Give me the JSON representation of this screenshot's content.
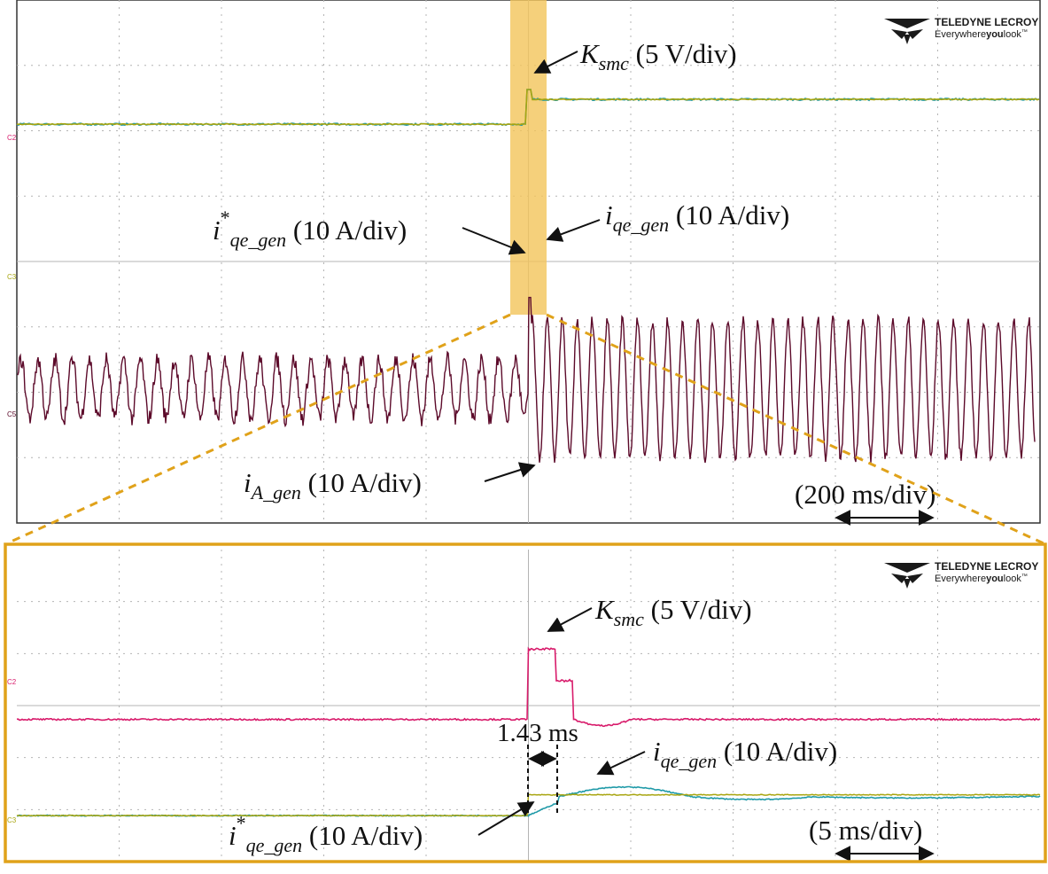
{
  "colors": {
    "ksmc": "#d81b6b",
    "iA_gen": "#5c0a2a",
    "iqe_ref": "#a8a510",
    "iqe_meas": "#1f9aa8",
    "highlight": "#f2c45a",
    "zoom": "#e0a21a",
    "grid": "#b4b4b4"
  },
  "brand": {
    "logo_icon": "teledyne-lecroy-logo-icon",
    "name": "TELEDYNE LECROY",
    "tagline_a": "Everywhere",
    "tagline_b": "you",
    "tagline_c": "look",
    "tagline_tm": "™"
  },
  "channel_tags": {
    "c2": "C2",
    "c3": "C3",
    "c5": "C5"
  },
  "top": {
    "ksmc_label": {
      "main": "K",
      "sub": "smc",
      "unit": " (5 V/div)"
    },
    "iqe_ref_label": {
      "main": "i",
      "sup": "*",
      "sub": "qe_gen",
      "unit": " (10 A/div)"
    },
    "iqe_meas_label": {
      "main": "i",
      "sub": "qe_gen",
      "unit": " (10 A/div)"
    },
    "ia_label": {
      "main": "i",
      "sub": "A_gen",
      "unit": " (10 A/div)"
    },
    "timebase": "(200 ms/div)"
  },
  "bottom": {
    "ksmc_label": {
      "main": "K",
      "sub": "smc",
      "unit": " (5 V/div)"
    },
    "iqe_meas_label": {
      "main": "i",
      "sub": "qe_gen",
      "unit": " (10 A/div)"
    },
    "iqe_ref_label": {
      "main": "i",
      "sup": "*",
      "sub": "qe_gen",
      "unit": " (10 A/div)"
    },
    "delay": "1.43 ms",
    "timebase": "(5 ms/div)"
  },
  "chart_data": [
    {
      "type": "line",
      "title": "",
      "grid": true,
      "x_divisions": 10,
      "y_divisions": 8,
      "x_scale": "200 ms/div",
      "event_time_div": 5.0,
      "series": [
        {
          "name": "K_smc",
          "scale": "5 V/div",
          "baseline_div": 5.6,
          "pulse_peak_div": 5.65
        },
        {
          "name": "i*_qe_gen",
          "scale": "10 A/div",
          "before_div": 2.1,
          "after_div": 2.48
        },
        {
          "name": "i_qe_gen",
          "scale": "10 A/div",
          "before_div": 2.1,
          "after_div": 2.48
        },
        {
          "name": "i_A_gen",
          "scale": "10 A/div",
          "center_div": -1.95,
          "amp_before_div": 0.45,
          "amp_after_div": 1.05,
          "cycles_before": 30,
          "cycles_after": 34
        }
      ]
    },
    {
      "type": "line",
      "title": "",
      "grid": true,
      "x_divisions": 10,
      "y_divisions": 6,
      "x_scale": "5 ms/div",
      "event_time_div": 5.0,
      "series": [
        {
          "name": "K_smc",
          "scale": "5 V/div",
          "baseline_div": 1.95,
          "peak_div": 3.3,
          "peak_duration_ms": 1.3
        },
        {
          "name": "i*_qe_gen",
          "scale": "10 A/div",
          "before_div": 0.1,
          "after_div": 0.5
        },
        {
          "name": "i_qe_gen",
          "scale": "10 A/div",
          "before_div": 0.1,
          "overshoot_div": 0.65,
          "settle_div": 0.46,
          "delay_ms": 1.43
        }
      ]
    }
  ]
}
